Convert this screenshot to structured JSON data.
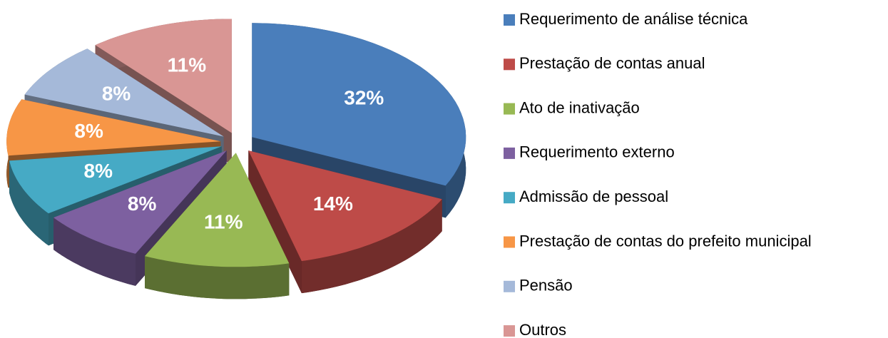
{
  "chart_data": {
    "type": "pie",
    "categories": [
      "Requerimento de análise técnica",
      "Prestação de contas anual",
      "Ato de inativação",
      "Requerimento externo",
      "Admissão de pessoal",
      "Prestação de contas do prefeito municipal",
      "Pensão",
      "Outros"
    ],
    "values": [
      32,
      14,
      11,
      8,
      8,
      8,
      8,
      11
    ],
    "value_labels": [
      "32%",
      "14%",
      "11%",
      "8%",
      "8%",
      "8%",
      "8%",
      "11%"
    ],
    "colors": [
      "#4a7ebb",
      "#be4b48",
      "#98b954",
      "#7d60a0",
      "#46aac5",
      "#f79646",
      "#a5b9d9",
      "#d99694"
    ],
    "legend": "right"
  }
}
